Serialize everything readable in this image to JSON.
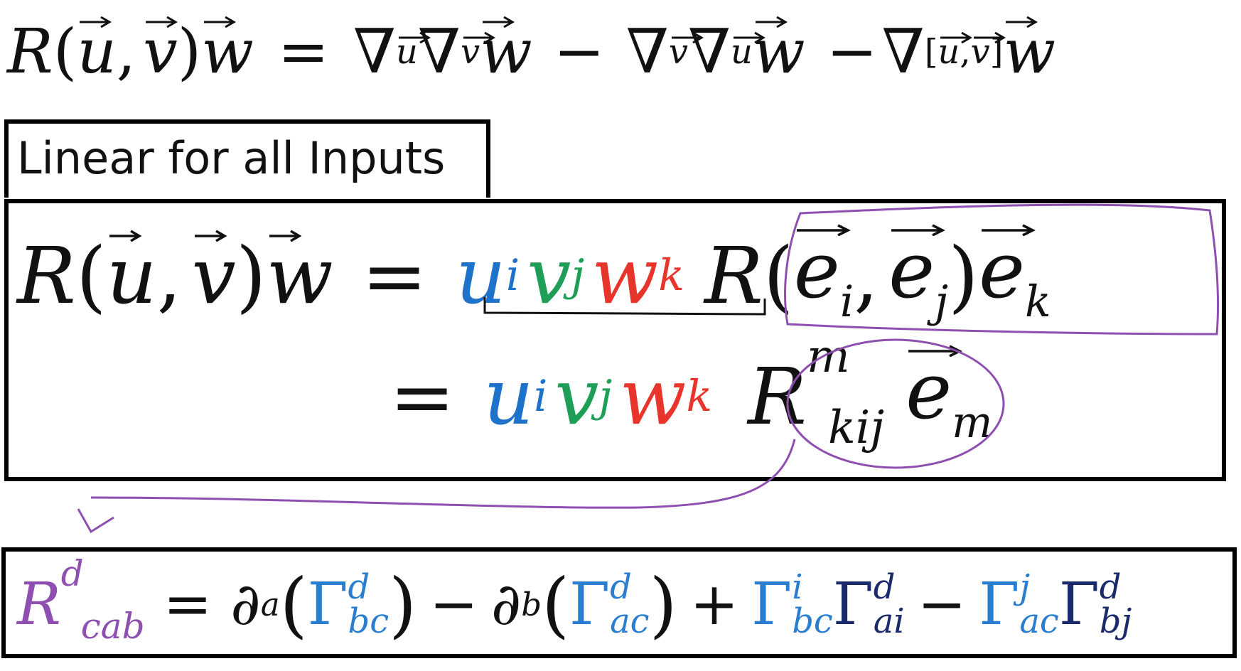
{
  "title_equation": {
    "lhs_R": "R",
    "lhs_args_open": "(",
    "lhs_u": "u",
    "lhs_comma": ",",
    "lhs_v": "v",
    "lhs_args_close": ")",
    "lhs_w": "w",
    "equals": "=",
    "nabla": "∇",
    "minus": "−"
  },
  "label": {
    "text": "Linear for all Inputs"
  },
  "main_equation": {
    "line1": {
      "R": "R",
      "u": "u",
      "v": "v",
      "w": "w",
      "equals": "=",
      "coef_u": "u",
      "coef_i": "i",
      "coef_v": "v",
      "coef_j": "j",
      "coef_w": "w",
      "coef_k": "k",
      "basis_R": "R",
      "e": "e",
      "sub_i": "i",
      "sub_j": "j",
      "sub_k": "k"
    },
    "line2": {
      "equals": "=",
      "coef_u": "u",
      "coef_i": "i",
      "coef_v": "v",
      "coef_j": "j",
      "coef_w": "w",
      "coef_k": "k",
      "R": "R",
      "sup_m": "m",
      "sub_kij": "kij",
      "e": "e",
      "sub_m": "m"
    }
  },
  "bottom_equation": {
    "R": "R",
    "sup_d": "d",
    "sub_cab": "cab",
    "equals": "=",
    "partial": "∂",
    "sub_a": "a",
    "sub_b": "b",
    "Gamma": "Γ",
    "sup_d2": "d",
    "sub_bc": "bc",
    "sub_ac": "ac",
    "sup_i": "i",
    "sup_j": "j",
    "sub_ai": "ai",
    "sub_bj": "bj",
    "minus": "−",
    "plus": "+"
  },
  "colors": {
    "u": "#1f72c9",
    "v": "#1f9e57",
    "w": "#e8352b",
    "annotation_purple": "#8e4fb0",
    "gamma_blue": "#2a7ecf",
    "gamma_dark": "#1b2a6b"
  }
}
